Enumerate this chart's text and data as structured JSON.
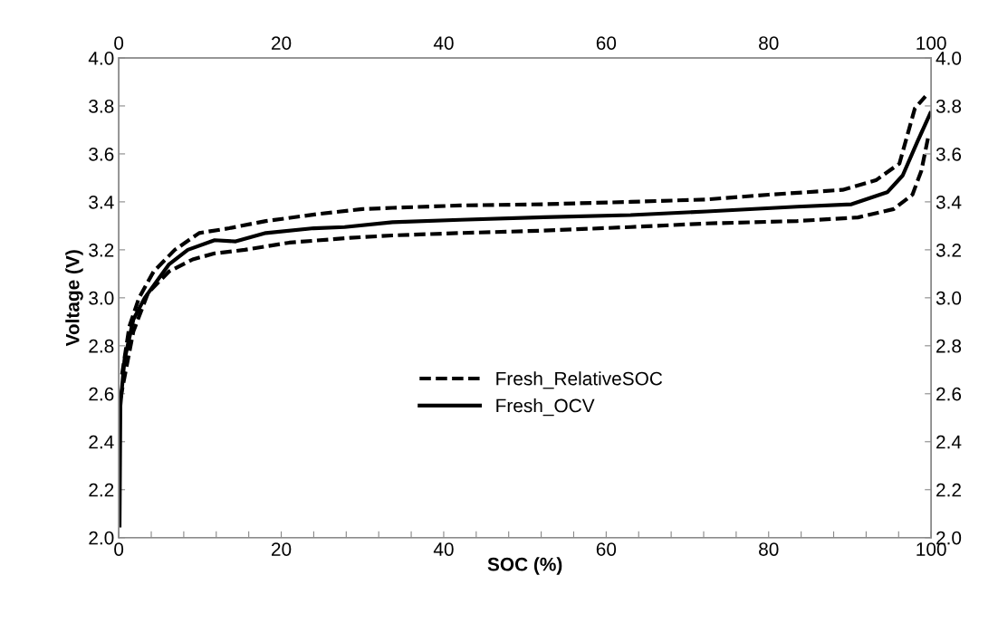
{
  "chart_data": {
    "type": "line",
    "xlabel": "SOC (%)",
    "ylabel": "Voltage (V)",
    "xlim": [
      0,
      100
    ],
    "ylim": [
      2.0,
      4.0
    ],
    "x2lim": [
      0,
      100
    ],
    "y2lim": [
      2.0,
      4.0
    ],
    "xticks": [
      0,
      {
        "value": 4,
        "label": null
      },
      {
        "value": 8,
        "label": null
      },
      {
        "value": 12,
        "label": null
      },
      {
        "value": 16,
        "label": null
      },
      20,
      {
        "value": 24,
        "label": null
      },
      {
        "value": 28,
        "label": null
      },
      {
        "value": 32,
        "label": null
      },
      {
        "value": 36,
        "label": null
      },
      40,
      {
        "value": 44,
        "label": null
      },
      {
        "value": 48,
        "label": null
      },
      {
        "value": 52,
        "label": null
      },
      {
        "value": 56,
        "label": null
      },
      60,
      {
        "value": 64,
        "label": null
      },
      {
        "value": 68,
        "label": null
      },
      {
        "value": 72,
        "label": null
      },
      {
        "value": 76,
        "label": null
      },
      80,
      {
        "value": 84,
        "label": null
      },
      {
        "value": 88,
        "label": null
      },
      {
        "value": 92,
        "label": null
      },
      {
        "value": 96,
        "label": null
      },
      100
    ],
    "x2ticks": [
      0,
      20,
      40,
      60,
      80,
      100
    ],
    "yticks": [
      {
        "value": 2.0,
        "label": "2.0"
      },
      {
        "value": 2.2,
        "label": "2.2"
      },
      {
        "value": 2.4,
        "label": "2.4"
      },
      {
        "value": 2.6,
        "label": "2.6"
      },
      {
        "value": 2.8,
        "label": "2.8"
      },
      {
        "value": 3.0,
        "label": "3.0"
      },
      {
        "value": 3.2,
        "label": "3.2"
      },
      {
        "value": 3.4,
        "label": "3.4"
      },
      {
        "value": 3.6,
        "label": "3.6"
      },
      {
        "value": 3.8,
        "label": "3.8"
      },
      {
        "value": 4.0,
        "label": "4.0"
      }
    ],
    "y2ticks": [
      {
        "value": 2.0,
        "label": "2.0"
      },
      {
        "value": 2.2,
        "label": "2.2"
      },
      {
        "value": 2.4,
        "label": "2.4"
      },
      {
        "value": 2.6,
        "label": "2.6"
      },
      {
        "value": 2.8,
        "label": "2.8"
      },
      {
        "value": 3.0,
        "label": "3.0"
      },
      {
        "value": 3.2,
        "label": "3.2"
      },
      {
        "value": 3.4,
        "label": "3.4"
      },
      {
        "value": 3.6,
        "label": "3.6"
      },
      {
        "value": 3.8,
        "label": "3.8"
      },
      {
        "value": 4.0,
        "label": "4.0"
      }
    ],
    "grid": false,
    "legend": "center",
    "marker": "none",
    "series": [
      {
        "name": "Fresh_RelativeSOC",
        "color": "#000000",
        "line_style": "dashed",
        "x": [
          0.4,
          1.3,
          2.5,
          4.3,
          6.9,
          9.9,
          13.6,
          18.1,
          24.7,
          30,
          33.7,
          42,
          52.3,
          63,
          72.4,
          80,
          89.1,
          93.2,
          96.1,
          98,
          99.3
        ],
        "values": [
          2.68,
          2.88,
          3.0,
          3.11,
          3.2,
          3.27,
          3.29,
          3.32,
          3.35,
          3.37,
          3.375,
          3.385,
          3.39,
          3.4,
          3.41,
          3.43,
          3.45,
          3.49,
          3.56,
          3.79,
          3.84
        ]
      },
      {
        "color": "#000000",
        "line_style": "dashed",
        "x": [
          0.2,
          1.8,
          3.6,
          6.2,
          9.1,
          11.8,
          15.5,
          21,
          28.5,
          33.7,
          42,
          52.3,
          63,
          72.4,
          83.5,
          91,
          95.4,
          97.7,
          98.8,
          99.7
        ],
        "values": [
          2.58,
          2.86,
          3.02,
          3.11,
          3.16,
          3.185,
          3.2,
          3.23,
          3.25,
          3.26,
          3.27,
          3.28,
          3.295,
          3.31,
          3.32,
          3.335,
          3.37,
          3.43,
          3.53,
          3.68
        ]
      },
      {
        "name": "Fresh_OCV",
        "color": "#000000",
        "line_style": "solid",
        "x": [
          0.1,
          0.2,
          0.7,
          1.8,
          3.2,
          6.2,
          8.5,
          11.8,
          14.4,
          18.1,
          24,
          27.8,
          33.7,
          42,
          52.3,
          63,
          72.4,
          83.5,
          90.2,
          94.6,
          96.5,
          98.3,
          99.9
        ],
        "values": [
          2.05,
          2.55,
          2.74,
          2.91,
          3.0,
          3.14,
          3.2,
          3.24,
          3.235,
          3.27,
          3.29,
          3.295,
          3.315,
          3.325,
          3.336,
          3.345,
          3.36,
          3.38,
          3.39,
          3.44,
          3.51,
          3.65,
          3.77
        ]
      }
    ]
  }
}
